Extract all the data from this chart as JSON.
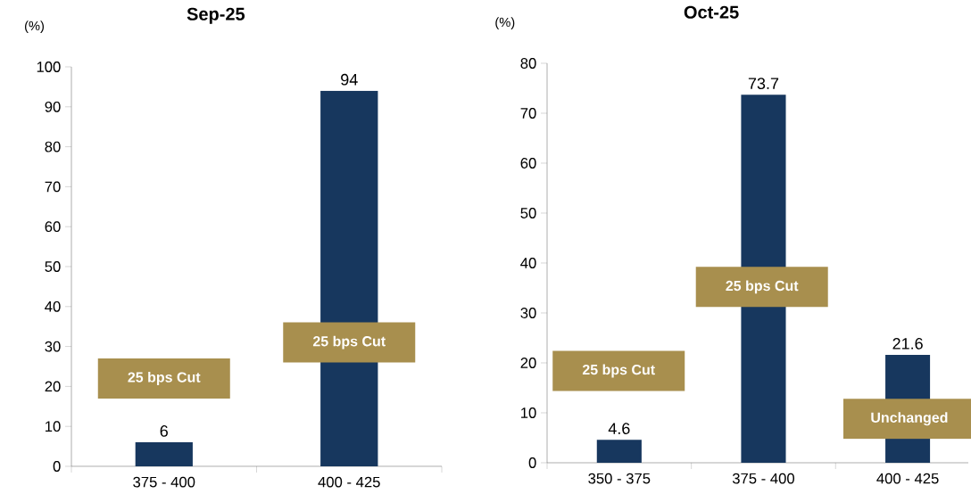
{
  "chart_data": [
    {
      "type": "bar",
      "title": "Sep-25",
      "ylabel": "(%)",
      "categories": [
        "375 - 400",
        "400 - 425"
      ],
      "values": [
        6,
        94
      ],
      "color": "#17375e",
      "ylim": [
        0,
        100
      ],
      "yticks": [
        0,
        10,
        20,
        30,
        40,
        50,
        60,
        70,
        80,
        90,
        100
      ],
      "data_labels": true,
      "grid": false,
      "annotations": [
        "25 bps Cut",
        "25 bps Cut"
      ]
    },
    {
      "type": "bar",
      "title": "Oct-25",
      "ylabel": "(%)",
      "categories": [
        "350 - 375",
        "375 - 400",
        "400 - 425"
      ],
      "values": [
        4.6,
        73.7,
        21.6
      ],
      "color": "#17375e",
      "ylim": [
        0,
        80
      ],
      "yticks": [
        0,
        10,
        20,
        30,
        40,
        50,
        60,
        70,
        80
      ],
      "data_labels": true,
      "grid": false,
      "annotations": [
        "25 bps Cut",
        "25 bps Cut",
        "Unchanged"
      ]
    }
  ]
}
